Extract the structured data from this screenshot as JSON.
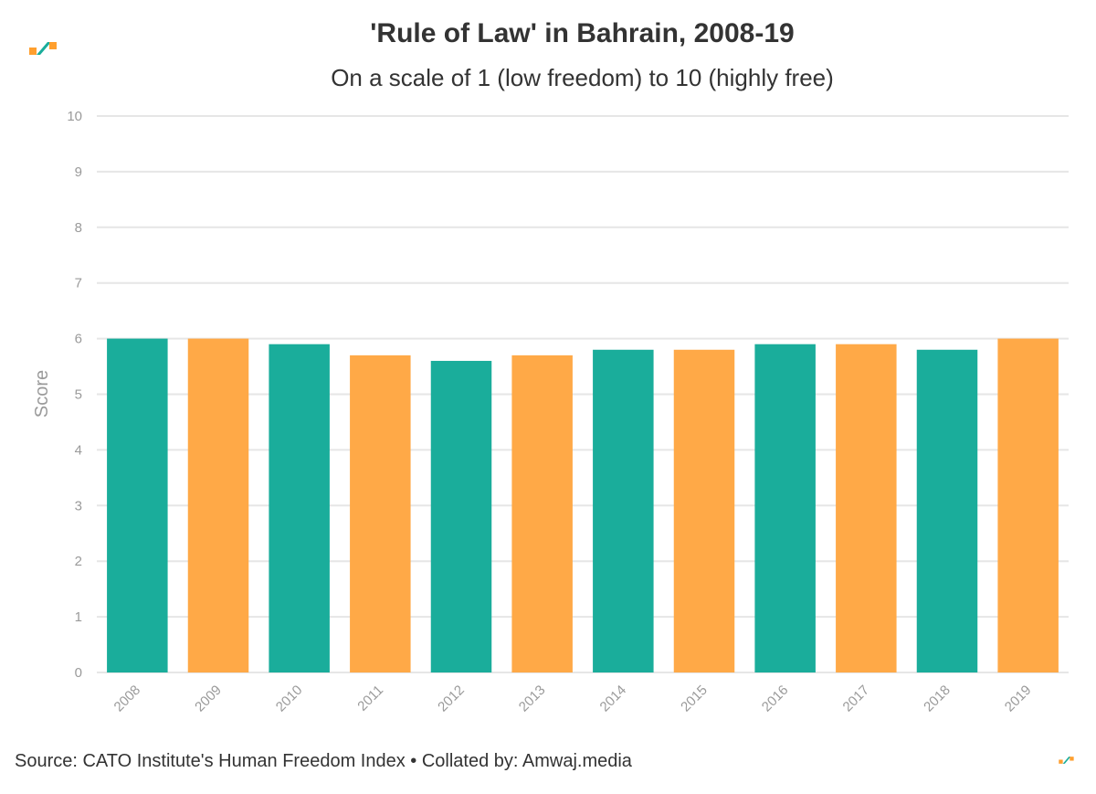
{
  "header": {
    "title": "'Rule of Law' in Bahrain, 2008-19",
    "subtitle": "On a scale of 1 (low freedom) to 10 (highly free)"
  },
  "footer": {
    "source": "Source: CATO Institute's Human Freedom Index • Collated by: Amwaj.media"
  },
  "colors": {
    "teal": "#1aad9b",
    "orange": "#ffa947",
    "grid": "#e6e6e6",
    "axis_text": "#9a9a9a",
    "logo_green": "#1aad9b",
    "logo_orange": "#ff9f2e"
  },
  "chart_data": {
    "type": "bar",
    "title": "'Rule of Law' in Bahrain, 2008-19",
    "subtitle": "On a scale of 1 (low freedom) to 10 (highly free)",
    "xlabel": "",
    "ylabel": "Score",
    "ylim": [
      0,
      10
    ],
    "yticks": [
      "0",
      "1",
      "2",
      "3",
      "4",
      "5",
      "6",
      "7",
      "8",
      "9",
      "10"
    ],
    "grid": true,
    "categories": [
      "2008",
      "2009",
      "2010",
      "2011",
      "2012",
      "2013",
      "2014",
      "2015",
      "2016",
      "2017",
      "2018",
      "2019"
    ],
    "values": [
      6.0,
      6.0,
      5.9,
      5.7,
      5.6,
      5.7,
      5.8,
      5.8,
      5.9,
      5.9,
      5.8,
      6.0
    ],
    "bar_colors": [
      "#1aad9b",
      "#ffa947",
      "#1aad9b",
      "#ffa947",
      "#1aad9b",
      "#ffa947",
      "#1aad9b",
      "#ffa947",
      "#1aad9b",
      "#ffa947",
      "#1aad9b",
      "#ffa947"
    ]
  }
}
